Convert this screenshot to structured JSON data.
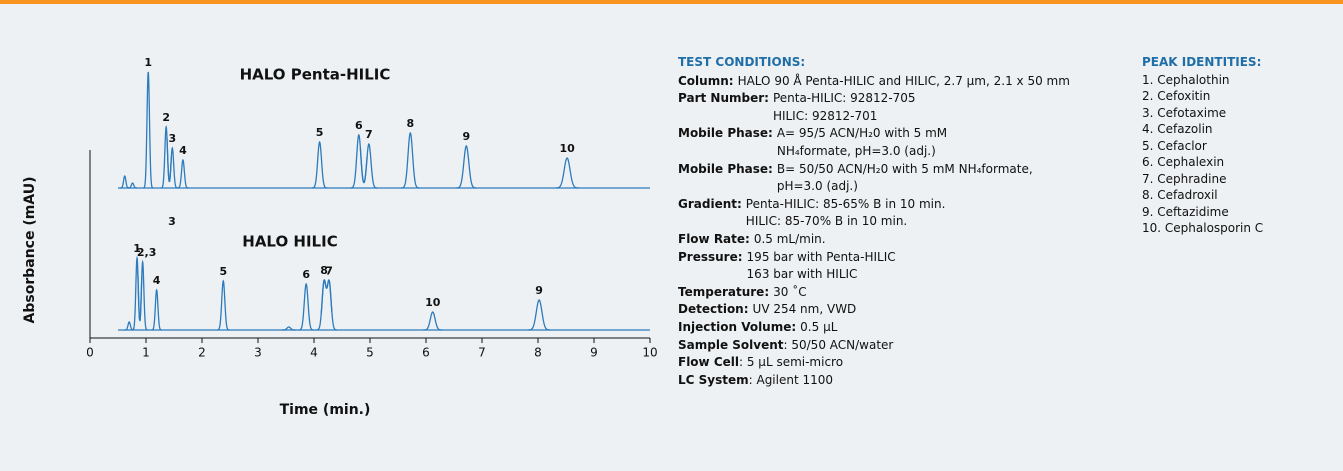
{
  "chart_data": {
    "type": "line",
    "xlabel": "Time (min.)",
    "ylabel": "Absorbance (mAU)",
    "xlim": [
      0,
      10
    ],
    "xticks": [
      0,
      1,
      2,
      3,
      4,
      5,
      6,
      7,
      8,
      9,
      10
    ],
    "ylim": [
      0,
      130
    ],
    "annotations": [
      "3"
    ],
    "series": [
      {
        "name": "HALO Penta-HILIC",
        "color": "#2b7bbd",
        "x": [
          0.62,
          0.76,
          1.04,
          1.36,
          1.47,
          1.66,
          4.1,
          4.8,
          4.98,
          5.72,
          6.72,
          8.52
        ],
        "values": [
          12,
          5,
          116,
          61,
          40,
          28,
          46,
          53,
          44,
          55,
          42,
          30
        ],
        "labels": [
          null,
          null,
          "1",
          "2",
          "3",
          "4",
          "5",
          "6",
          "7",
          "8",
          "9",
          "10"
        ]
      },
      {
        "name": "HALO HILIC",
        "color": "#2b7bbd",
        "x": [
          0.7,
          0.84,
          0.94,
          1.19,
          2.38,
          3.55,
          3.86,
          4.18,
          4.27,
          6.12,
          8.02
        ],
        "values": [
          8,
          72,
          68,
          40,
          49,
          3,
          46,
          48,
          48,
          18,
          30
        ],
        "labels": [
          null,
          "1",
          "2,3",
          "4",
          "5",
          null,
          "6",
          "8",
          "7",
          "10",
          "9"
        ]
      }
    ]
  },
  "conditions": {
    "title": "TEST CONDITIONS:",
    "items": [
      {
        "label": "Column:",
        "lines": [
          "HALO 90 Å Penta-HILIC and HILIC, 2.7 µm, 2.1 x 50 mm"
        ]
      },
      {
        "label": "Part Number:",
        "lines": [
          "Penta-HILIC: 92812-705",
          "HILIC: 92812-701"
        ]
      },
      {
        "label": "Mobile Phase:",
        "lines": [
          "A= 95/5 ACN/H₂0 with 5 mM",
          "NH₄formate, pH=3.0 (adj.)"
        ]
      },
      {
        "label": "Mobile Phase:",
        "lines": [
          "B= 50/50 ACN/H₂0 with 5 mM NH₄formate,",
          "pH=3.0 (adj.)"
        ]
      },
      {
        "label": "Gradient:",
        "lines": [
          "Penta-HILIC: 85-65% B in 10 min.",
          "HILIC: 85-70% B in 10 min."
        ]
      },
      {
        "label": "Flow Rate:",
        "lines": [
          "0.5 mL/min."
        ]
      },
      {
        "label": "Pressure:",
        "lines": [
          "195 bar with Penta-HILIC",
          "163 bar with HILIC"
        ]
      },
      {
        "label": "Temperature:",
        "lines": [
          "30 ˚C"
        ]
      },
      {
        "label": "Detection:",
        "lines": [
          "UV 254 nm, VWD"
        ]
      },
      {
        "label": "Injection Volume:",
        "lines": [
          "0.5 µL"
        ]
      },
      {
        "label": "Sample Solvent",
        "lines": [
          ": 50/50 ACN/water"
        ]
      },
      {
        "label": "Flow Cell",
        "lines": [
          ": 5 µL semi-micro"
        ]
      },
      {
        "label": "LC System",
        "lines": [
          ": Agilent 1100"
        ]
      }
    ]
  },
  "identities": {
    "title": "PEAK IDENTITIES:",
    "items": [
      "1. Cephalothin",
      "2. Cefoxitin",
      "3. Cefotaxime",
      "4. Cefazolin",
      "5. Cefaclor",
      "6. Cephalexin",
      "7. Cephradine",
      "8. Cefadroxil",
      "9. Ceftazidime",
      "10. Cephalosporin C"
    ]
  }
}
